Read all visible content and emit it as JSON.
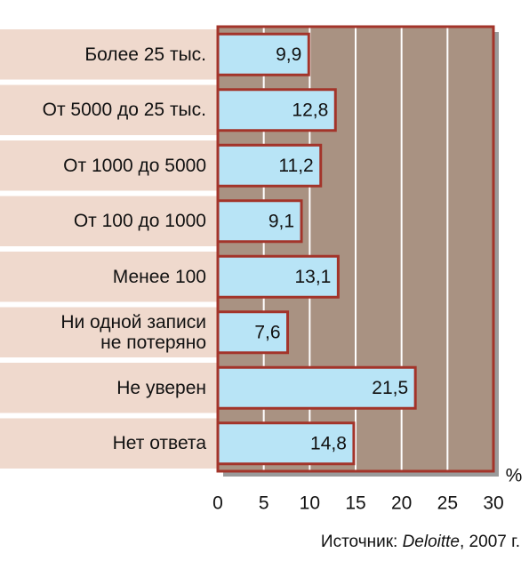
{
  "chart_data": {
    "type": "barh",
    "categories": [
      "Более 25 тыс.",
      "От 5000 до 25 тыс.",
      "От 1000 до 5000",
      "От 100 до 1000",
      "Менее 100",
      "Ни одной записи\nне потеряно",
      "Не уверен",
      "Нет ответа"
    ],
    "values": [
      9.9,
      12.8,
      11.2,
      9.1,
      13.1,
      7.6,
      21.5,
      14.8
    ],
    "value_labels": [
      "9,9",
      "12,8",
      "11,2",
      "9,1",
      "13,1",
      "7,6",
      "21,5",
      "14,8"
    ],
    "color": "#b8e4f6",
    "border_color": "#a3342a",
    "plot_background": "#a99282",
    "xlim": [
      0,
      30
    ],
    "xticks": [
      0,
      5,
      10,
      15,
      20,
      25,
      30
    ],
    "grid": true,
    "x_unit": "%",
    "source": {
      "label": "Источник:",
      "org": "Deloitte",
      "year": ", 2007 г."
    }
  }
}
